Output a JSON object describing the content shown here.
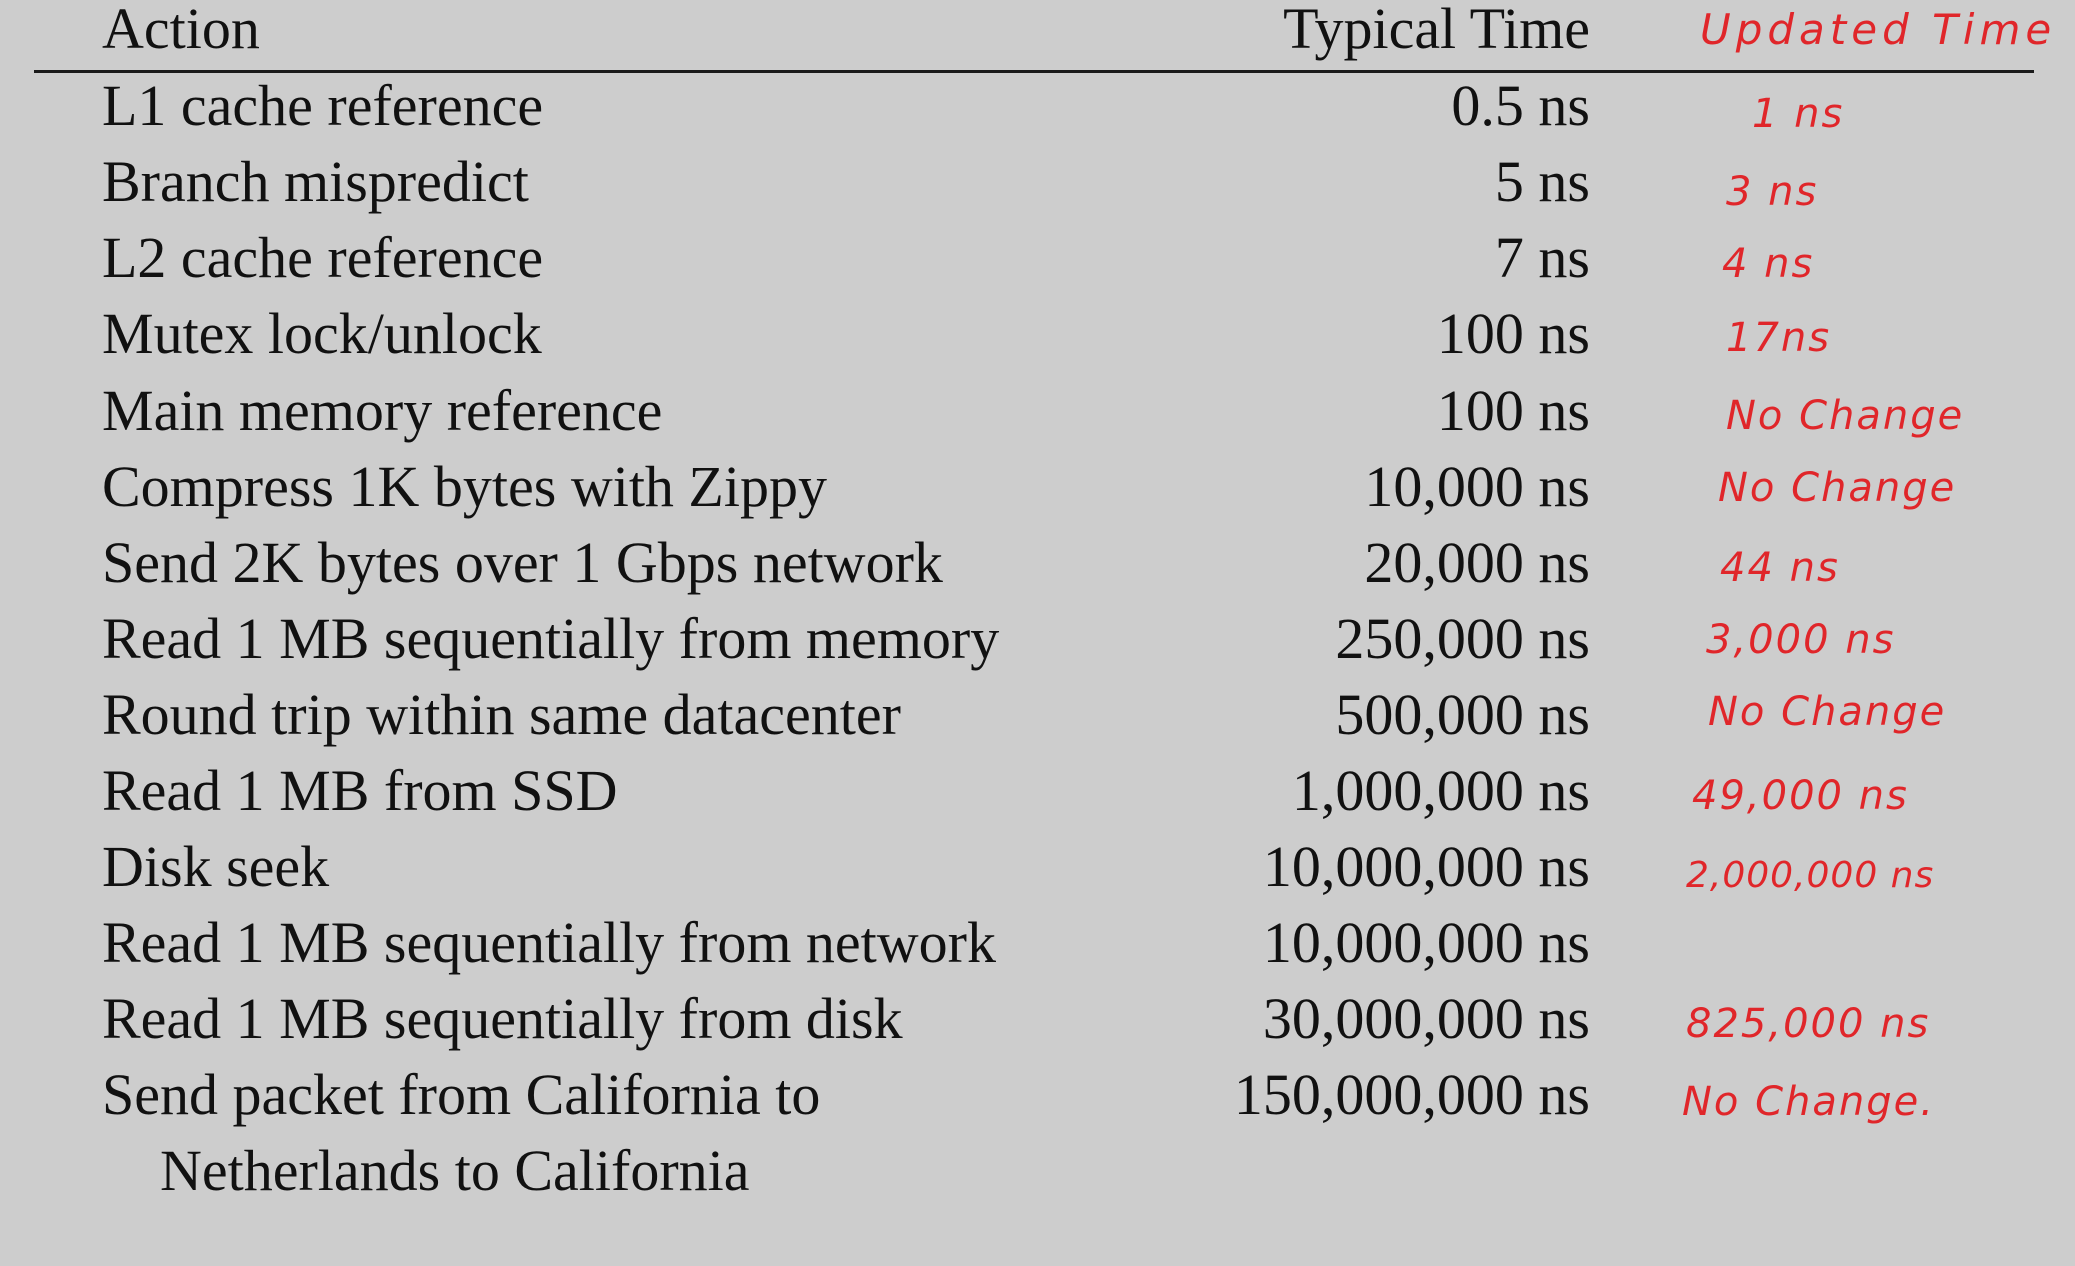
{
  "header": {
    "action": "Action",
    "typical_time": "Typical Time",
    "updated_time": "Updated Time"
  },
  "rows": [
    {
      "action": "L1 cache reference",
      "time": "0.5 ns",
      "updated": "1 ns"
    },
    {
      "action": "Branch mispredict",
      "time": "5 ns",
      "updated": "3 ns"
    },
    {
      "action": "L2 cache reference",
      "time": "7 ns",
      "updated": "4 ns"
    },
    {
      "action": "Mutex lock/unlock",
      "time": "100 ns",
      "updated": "17ns"
    },
    {
      "action": "Main memory reference",
      "time": "100 ns",
      "updated": "No Change"
    },
    {
      "action": "Compress 1K bytes with Zippy",
      "time": "10,000 ns",
      "updated": "No Change"
    },
    {
      "action": "Send 2K bytes over 1 Gbps network",
      "time": "20,000 ns",
      "updated": "44 ns"
    },
    {
      "action": "Read 1 MB sequentially from memory",
      "time": "250,000 ns",
      "updated": "3,000 ns"
    },
    {
      "action": "Round trip within same datacenter",
      "time": "500,000 ns",
      "updated": "No Change"
    },
    {
      "action": "Read 1 MB from SSD",
      "time": "1,000,000 ns",
      "updated": "49,000 ns"
    },
    {
      "action": "Disk seek",
      "time": "10,000,000 ns",
      "updated": "2,000,000 ns"
    },
    {
      "action": "Read 1 MB sequentially from network",
      "time": "10,000,000 ns",
      "updated": ""
    },
    {
      "action": "Read 1 MB sequentially from disk",
      "time": "30,000,000 ns",
      "updated": "825,000 ns"
    },
    {
      "action": "Send packet from California to",
      "action_cont": "Netherlands to California",
      "time": "150,000,000 ns",
      "updated": "No Change."
    }
  ]
}
